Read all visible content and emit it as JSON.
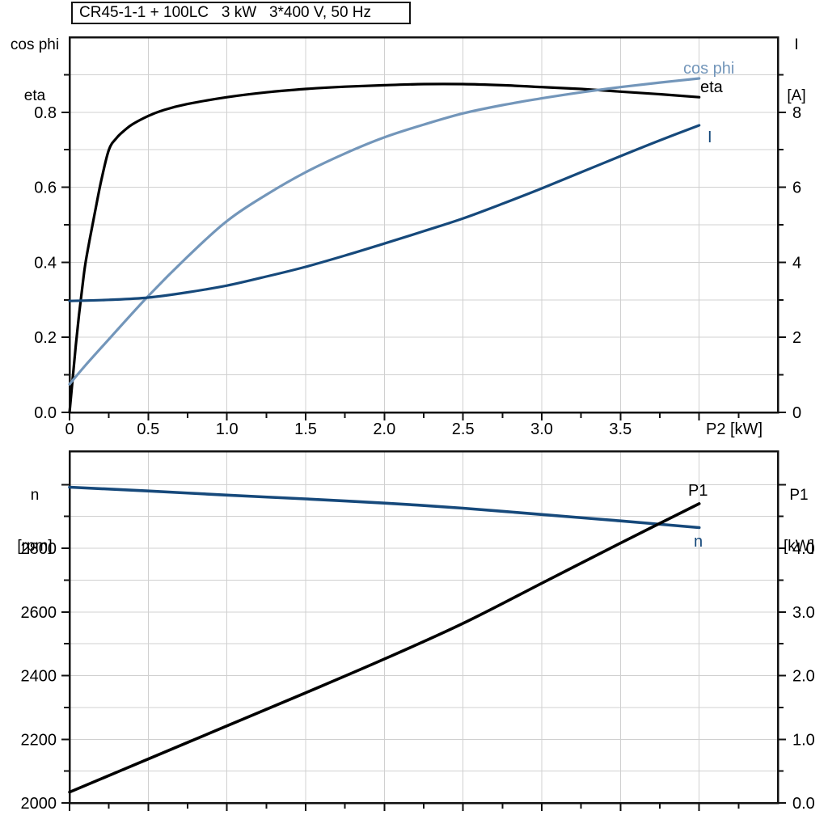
{
  "title": "CR45-1-1 + 100LC   3 kW   3*400 V, 50 Hz",
  "colors": {
    "eta": "#000000",
    "cos_phi": "#7396ba",
    "current": "#16497b",
    "speed": "#16497b",
    "p1": "#000000",
    "grid": "#d0d0d0",
    "axis": "#111111"
  },
  "chart_data": [
    {
      "id": "upper",
      "type": "line",
      "legend_position": "inline-right",
      "grid": true,
      "x_axis": {
        "label": "P2 [kW]",
        "min": 0,
        "max": 4.5,
        "show_labels": true,
        "labels": [
          [
            "0",
            0
          ],
          [
            "0.5",
            0.5
          ],
          [
            "1.0",
            1.0
          ],
          [
            "1.5",
            1.5
          ],
          [
            "2.0",
            2.0
          ],
          [
            "2.5",
            2.5
          ],
          [
            "3.0",
            3.0
          ],
          [
            "3.5",
            3.5
          ]
        ],
        "major_ticks": [
          0,
          0.5,
          1.0,
          1.5,
          2.0,
          2.5,
          3.0,
          3.5,
          4.0
        ],
        "minor_ticks": [
          0.25,
          0.75,
          1.25,
          1.75,
          2.25,
          2.75,
          3.25,
          3.75,
          4.25
        ],
        "gridlines": [
          0.5,
          1.0,
          1.5,
          2.0,
          2.5,
          3.0,
          3.5,
          4.0
        ]
      },
      "y_left": {
        "title_lines": [
          "cos phi",
          "eta"
        ],
        "min": 0,
        "max": 1.0,
        "labels": [
          [
            "0.0",
            0
          ],
          [
            "0.2",
            0.2
          ],
          [
            "0.4",
            0.4
          ],
          [
            "0.6",
            0.6
          ],
          [
            "0.8",
            0.8
          ]
        ],
        "major_ticks": [
          0,
          0.2,
          0.4,
          0.6,
          0.8
        ],
        "minor_ticks": [
          0.1,
          0.3,
          0.5,
          0.7,
          0.9
        ],
        "gridlines": [
          0.1,
          0.2,
          0.3,
          0.4,
          0.5,
          0.6,
          0.7,
          0.8,
          0.9
        ]
      },
      "y_right": {
        "title_lines": [
          "I",
          "[A]"
        ],
        "min": 0,
        "max": 10,
        "labels": [
          [
            "0",
            0
          ],
          [
            "2",
            2
          ],
          [
            "4",
            4
          ],
          [
            "6",
            6
          ],
          [
            "8",
            8
          ]
        ],
        "major_ticks": [
          0,
          2,
          4,
          6,
          8
        ],
        "minor_ticks": [
          1,
          3,
          5,
          7,
          9
        ],
        "gridlines": []
      },
      "series": [
        {
          "name": "eta",
          "label": "eta",
          "axis": "left",
          "color_key": "eta",
          "points": [
            [
              0,
              0
            ],
            [
              0.02,
              0.09
            ],
            [
              0.04,
              0.18
            ],
            [
              0.06,
              0.26
            ],
            [
              0.08,
              0.33
            ],
            [
              0.1,
              0.395
            ],
            [
              0.13,
              0.465
            ],
            [
              0.16,
              0.53
            ],
            [
              0.2,
              0.615
            ],
            [
              0.25,
              0.7
            ],
            [
              0.3,
              0.732
            ],
            [
              0.35,
              0.752
            ],
            [
              0.4,
              0.768
            ],
            [
              0.5,
              0.79
            ],
            [
              0.6,
              0.806
            ],
            [
              0.75,
              0.822
            ],
            [
              1,
              0.84
            ],
            [
              1.25,
              0.853
            ],
            [
              1.5,
              0.862
            ],
            [
              1.75,
              0.868
            ],
            [
              2,
              0.872
            ],
            [
              2.25,
              0.875
            ],
            [
              2.5,
              0.875
            ],
            [
              2.75,
              0.872
            ],
            [
              3,
              0.867
            ],
            [
              3.25,
              0.862
            ],
            [
              3.5,
              0.855
            ],
            [
              3.75,
              0.848
            ],
            [
              4,
              0.84
            ]
          ]
        },
        {
          "name": "cos phi",
          "label": "cos phi",
          "axis": "left",
          "color_key": "cos_phi",
          "points": [
            [
              0,
              0.075
            ],
            [
              0.1,
              0.125
            ],
            [
              0.25,
              0.195
            ],
            [
              0.5,
              0.31
            ],
            [
              0.75,
              0.415
            ],
            [
              1,
              0.51
            ],
            [
              1.25,
              0.58
            ],
            [
              1.5,
              0.64
            ],
            [
              1.75,
              0.69
            ],
            [
              2,
              0.733
            ],
            [
              2.25,
              0.767
            ],
            [
              2.5,
              0.797
            ],
            [
              2.75,
              0.819
            ],
            [
              3,
              0.837
            ],
            [
              3.25,
              0.853
            ],
            [
              3.5,
              0.867
            ],
            [
              3.75,
              0.879
            ],
            [
              4,
              0.89
            ]
          ]
        },
        {
          "name": "I",
          "label": "I",
          "axis": "right",
          "color_key": "current",
          "points": [
            [
              0,
              2.97
            ],
            [
              0.25,
              3
            ],
            [
              0.5,
              3.06
            ],
            [
              0.75,
              3.2
            ],
            [
              1,
              3.38
            ],
            [
              1.25,
              3.62
            ],
            [
              1.5,
              3.88
            ],
            [
              1.75,
              4.18
            ],
            [
              2,
              4.5
            ],
            [
              2.25,
              4.83
            ],
            [
              2.5,
              5.17
            ],
            [
              2.75,
              5.56
            ],
            [
              3,
              5.97
            ],
            [
              3.25,
              6.4
            ],
            [
              3.5,
              6.83
            ],
            [
              3.75,
              7.25
            ],
            [
              4,
              7.65
            ]
          ]
        }
      ]
    },
    {
      "id": "lower",
      "type": "line",
      "legend_position": "inline-right",
      "grid": true,
      "x_axis": {
        "label": "",
        "min": 0,
        "max": 4.5,
        "show_labels": false,
        "labels": [],
        "major_ticks": [
          0,
          0.5,
          1.0,
          1.5,
          2.0,
          2.5,
          3.0,
          3.5,
          4.0
        ],
        "minor_ticks": [
          0.25,
          0.75,
          1.25,
          1.75,
          2.25,
          2.75,
          3.25,
          3.75,
          4.25
        ],
        "gridlines": [
          0.5,
          1.0,
          1.5,
          2.0,
          2.5,
          3.0,
          3.5,
          4.0
        ]
      },
      "y_left": {
        "title_lines": [
          "n",
          "[rpm]"
        ],
        "min": 2000,
        "max": 3105,
        "labels": [
          [
            "2000",
            2000
          ],
          [
            "2200",
            2200
          ],
          [
            "2400",
            2400
          ],
          [
            "2600",
            2600
          ],
          [
            "2800",
            2800
          ]
        ],
        "major_ticks": [
          2000,
          2200,
          2400,
          2600,
          2800,
          3000
        ],
        "minor_ticks": [
          2100,
          2300,
          2500,
          2700,
          2900
        ],
        "gridlines": [
          2100,
          2200,
          2300,
          2400,
          2500,
          2600,
          2700,
          2800,
          2900,
          3000
        ]
      },
      "y_right": {
        "title_lines": [
          "P1",
          "[kW]"
        ],
        "min": 0,
        "max": 5.524,
        "labels": [
          [
            "0.0",
            0
          ],
          [
            "1.0",
            1
          ],
          [
            "2.0",
            2
          ],
          [
            "3.0",
            3
          ],
          [
            "4.0",
            4
          ]
        ],
        "major_ticks": [
          0,
          1,
          2,
          3,
          4,
          5
        ],
        "minor_ticks": [
          0.5,
          1.5,
          2.5,
          3.5,
          4.5
        ],
        "gridlines": []
      },
      "series": [
        {
          "name": "n",
          "label": "n",
          "axis": "left",
          "color_key": "speed",
          "points": [
            [
              0,
              2992
            ],
            [
              0.5,
              2980
            ],
            [
              1,
              2967
            ],
            [
              1.5,
              2955
            ],
            [
              2,
              2942
            ],
            [
              2.5,
              2926
            ],
            [
              3,
              2906
            ],
            [
              3.5,
              2886
            ],
            [
              4,
              2865
            ]
          ]
        },
        {
          "name": "P1",
          "label": "P1",
          "axis": "right",
          "color_key": "p1",
          "points": [
            [
              0,
              0.17
            ],
            [
              0.5,
              0.69
            ],
            [
              1,
              1.21
            ],
            [
              1.5,
              1.73
            ],
            [
              2,
              2.26
            ],
            [
              2.5,
              2.82
            ],
            [
              3,
              3.45
            ],
            [
              3.5,
              4.08
            ],
            [
              4,
              4.7
            ]
          ]
        }
      ]
    }
  ]
}
